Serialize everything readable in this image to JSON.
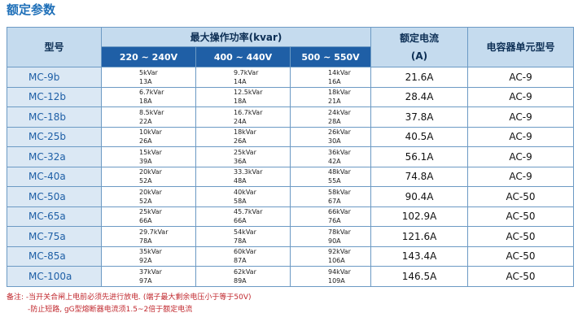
{
  "title": "额定参数",
  "header": {
    "model": "型号",
    "power": "最大操作功率(kvar)",
    "current": "额定电流",
    "current_unit": "(A)",
    "unit_model": "电容器单元型号",
    "v1": "220 ~ 240V",
    "v2": "400 ~ 440V",
    "v3": "500 ~ 550V"
  },
  "rows": [
    {
      "model": "MC-9b",
      "p1": "5kVar",
      "a1": "13A",
      "p2": "9.7kVar",
      "a2": "14A",
      "p3": "14kVar",
      "a3": "16A",
      "current": "21.6A",
      "unit": "AC-9"
    },
    {
      "model": "MC-12b",
      "p1": "6.7kVar",
      "a1": "18A",
      "p2": "12.5kVar",
      "a2": "18A",
      "p3": "18kVar",
      "a3": "21A",
      "current": "28.4A",
      "unit": "AC-9"
    },
    {
      "model": "MC-18b",
      "p1": "8.5kVar",
      "a1": "22A",
      "p2": "16.7kVar",
      "a2": "24A",
      "p3": "24kVar",
      "a3": "28A",
      "current": "37.8A",
      "unit": "AC-9"
    },
    {
      "model": "MC-25b",
      "p1": "10kVar",
      "a1": "26A",
      "p2": "18kVar",
      "a2": "26A",
      "p3": "26kVar",
      "a3": "30A",
      "current": "40.5A",
      "unit": "AC-9"
    },
    {
      "model": "MC-32a",
      "p1": "15kVar",
      "a1": "39A",
      "p2": "25kVar",
      "a2": "36A",
      "p3": "36kVar",
      "a3": "42A",
      "current": "56.1A",
      "unit": "AC-9"
    },
    {
      "model": "MC-40a",
      "p1": "20kVar",
      "a1": "52A",
      "p2": "33.3kVar",
      "a2": "48A",
      "p3": "48kVar",
      "a3": "55A",
      "current": "74.8A",
      "unit": "AC-9"
    },
    {
      "model": "MC-50a",
      "p1": "20kVar",
      "a1": "52A",
      "p2": "40kVar",
      "a2": "58A",
      "p3": "58kVar",
      "a3": "67A",
      "current": "90.4A",
      "unit": "AC-50"
    },
    {
      "model": "MC-65a",
      "p1": "25kVar",
      "a1": "66A",
      "p2": "45.7kVar",
      "a2": "66A",
      "p3": "66kVar",
      "a3": "76A",
      "current": "102.9A",
      "unit": "AC-50"
    },
    {
      "model": "MC-75a",
      "p1": "29.7kVar",
      "a1": "78A",
      "p2": "54kVar",
      "a2": "78A",
      "p3": "78kVar",
      "a3": "90A",
      "current": "121.6A",
      "unit": "AC-50"
    },
    {
      "model": "MC-85a",
      "p1": "35kVar",
      "a1": "92A",
      "p2": "60kVar",
      "a2": "87A",
      "p3": "92kVar",
      "a3": "106A",
      "current": "143.4A",
      "unit": "AC-50"
    },
    {
      "model": "MC-100a",
      "p1": "37kVar",
      "a1": "97A",
      "p2": "62kVar",
      "a2": "89A",
      "p3": "94kVar",
      "a3": "109A",
      "current": "146.5A",
      "unit": "AC-50"
    }
  ],
  "notes": {
    "line1": "备注: -当开关合闸上电前必须先进行放电. (端子最大剩余电压小于等于50V)",
    "line2": "-防止短路, gG型熔断器电流须1.5~2倍于额定电流"
  }
}
